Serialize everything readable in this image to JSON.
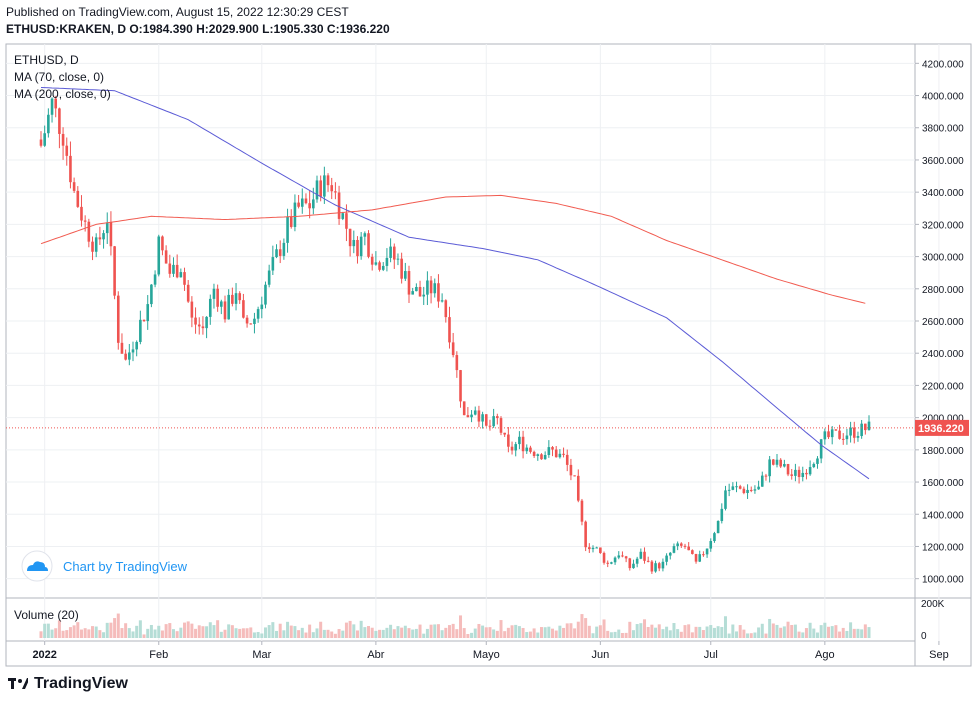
{
  "header": {
    "published": "Published on TradingView.com, August 15, 2022 12:30:29 CEST",
    "symbol": "ETHUSD:KRAKEN, D",
    "o_label": "O:",
    "o": "1984.390",
    "h_label": "H:",
    "h": "2029.900",
    "l_label": "L:",
    "l": "1905.330",
    "c_label": "C:",
    "c": "1936.220"
  },
  "legend": {
    "title": "ETHUSD, D",
    "ma70": "MA (70, close, 0)",
    "ma200": "MA (200, close, 0)"
  },
  "watermark": "Chart by TradingView",
  "volume_label": "Volume (20)",
  "footer_brand": "TradingView",
  "last_price_label": "1936.220",
  "colors": {
    "up": "#26a69a",
    "down": "#ef5350",
    "ma70": "#5b5bd6",
    "ma200": "#f15b50",
    "vol_up": "#b5ddd6",
    "vol_down": "#f5bcbb",
    "grid": "#eef0f3",
    "accent": "#2196f3"
  },
  "chart_data": [
    {
      "type": "candlestick",
      "title": "ETHUSD, D",
      "x_ticks": [
        "2022",
        "Feb",
        "Mar",
        "Abr",
        "Mayo",
        "Jun",
        "Jul",
        "Ago",
        "Sep"
      ],
      "y_ticks": [
        "4200.000",
        "4000.000",
        "3800.000",
        "3600.000",
        "3400.000",
        "3200.000",
        "3000.000",
        "2800.000",
        "2600.000",
        "2400.000",
        "2200.000",
        "2000.000",
        "1800.000",
        "1600.000",
        "1400.000",
        "1200.000",
        "1000.000"
      ],
      "ylim": [
        880,
        4320
      ],
      "date_range": [
        "2021-12-31",
        "2022-08-15"
      ],
      "grid": true,
      "price_anchors": [
        [
          0,
          3690
        ],
        [
          3,
          3950
        ],
        [
          6,
          3760
        ],
        [
          9,
          3400
        ],
        [
          12,
          3200
        ],
        [
          15,
          3050
        ],
        [
          18,
          3250
        ],
        [
          21,
          2500
        ],
        [
          23,
          2350
        ],
        [
          26,
          2530
        ],
        [
          29,
          2700
        ],
        [
          32,
          3080
        ],
        [
          35,
          2900
        ],
        [
          38,
          2950
        ],
        [
          41,
          2600
        ],
        [
          44,
          2550
        ],
        [
          47,
          2800
        ],
        [
          50,
          2650
        ],
        [
          53,
          2800
        ],
        [
          55,
          2570
        ],
        [
          58,
          2620
        ],
        [
          61,
          2820
        ],
        [
          64,
          3000
        ],
        [
          67,
          3180
        ],
        [
          70,
          3300
        ],
        [
          73,
          3320
        ],
        [
          76,
          3450
        ],
        [
          79,
          3450
        ],
        [
          82,
          3250
        ],
        [
          85,
          3050
        ],
        [
          88,
          3130
        ],
        [
          91,
          2960
        ],
        [
          94,
          3020
        ],
        [
          97,
          2970
        ],
        [
          100,
          2820
        ],
        [
          103,
          2760
        ],
        [
          106,
          2800
        ],
        [
          109,
          2750
        ],
        [
          112,
          2420
        ],
        [
          115,
          2000
        ],
        [
          118,
          2070
        ],
        [
          121,
          1930
        ],
        [
          124,
          1980
        ],
        [
          127,
          1790
        ],
        [
          130,
          1850
        ],
        [
          133,
          1800
        ],
        [
          136,
          1780
        ],
        [
          139,
          1790
        ],
        [
          142,
          1750
        ],
        [
          145,
          1600
        ],
        [
          146,
          1450
        ],
        [
          148,
          1220
        ],
        [
          151,
          1180
        ],
        [
          154,
          1090
        ],
        [
          157,
          1160
        ],
        [
          160,
          1070
        ],
        [
          163,
          1150
        ],
        [
          166,
          1070
        ],
        [
          169,
          1090
        ],
        [
          172,
          1190
        ],
        [
          175,
          1200
        ],
        [
          178,
          1090
        ],
        [
          181,
          1200
        ],
        [
          184,
          1350
        ],
        [
          186,
          1550
        ],
        [
          189,
          1560
        ],
        [
          192,
          1550
        ],
        [
          195,
          1560
        ],
        [
          198,
          1720
        ],
        [
          201,
          1700
        ],
        [
          204,
          1640
        ],
        [
          207,
          1660
        ],
        [
          210,
          1750
        ],
        [
          213,
          1870
        ],
        [
          225,
          1936
        ]
      ],
      "series": [
        {
          "name": "MA (70, close, 0)",
          "values": [
            [
              0,
              4050
            ],
            [
              20,
              4030
            ],
            [
              40,
              3850
            ],
            [
              60,
              3580
            ],
            [
              80,
              3320
            ],
            [
              100,
              3120
            ],
            [
              120,
              3050
            ],
            [
              135,
              2980
            ],
            [
              150,
              2830
            ],
            [
              170,
              2620
            ],
            [
              185,
              2350
            ],
            [
              200,
              2060
            ],
            [
              212,
              1830
            ],
            [
              225,
              1620
            ]
          ]
        },
        {
          "name": "MA (200, close, 0)",
          "values": [
            [
              0,
              3080
            ],
            [
              15,
              3200
            ],
            [
              30,
              3250
            ],
            [
              50,
              3230
            ],
            [
              70,
              3250
            ],
            [
              90,
              3290
            ],
            [
              110,
              3370
            ],
            [
              125,
              3380
            ],
            [
              140,
              3330
            ],
            [
              155,
              3250
            ],
            [
              170,
              3100
            ],
            [
              185,
              2980
            ],
            [
              200,
              2860
            ],
            [
              215,
              2760
            ],
            [
              224,
              2710
            ]
          ]
        }
      ],
      "volume_axis": [
        "200K",
        "0"
      ]
    }
  ]
}
